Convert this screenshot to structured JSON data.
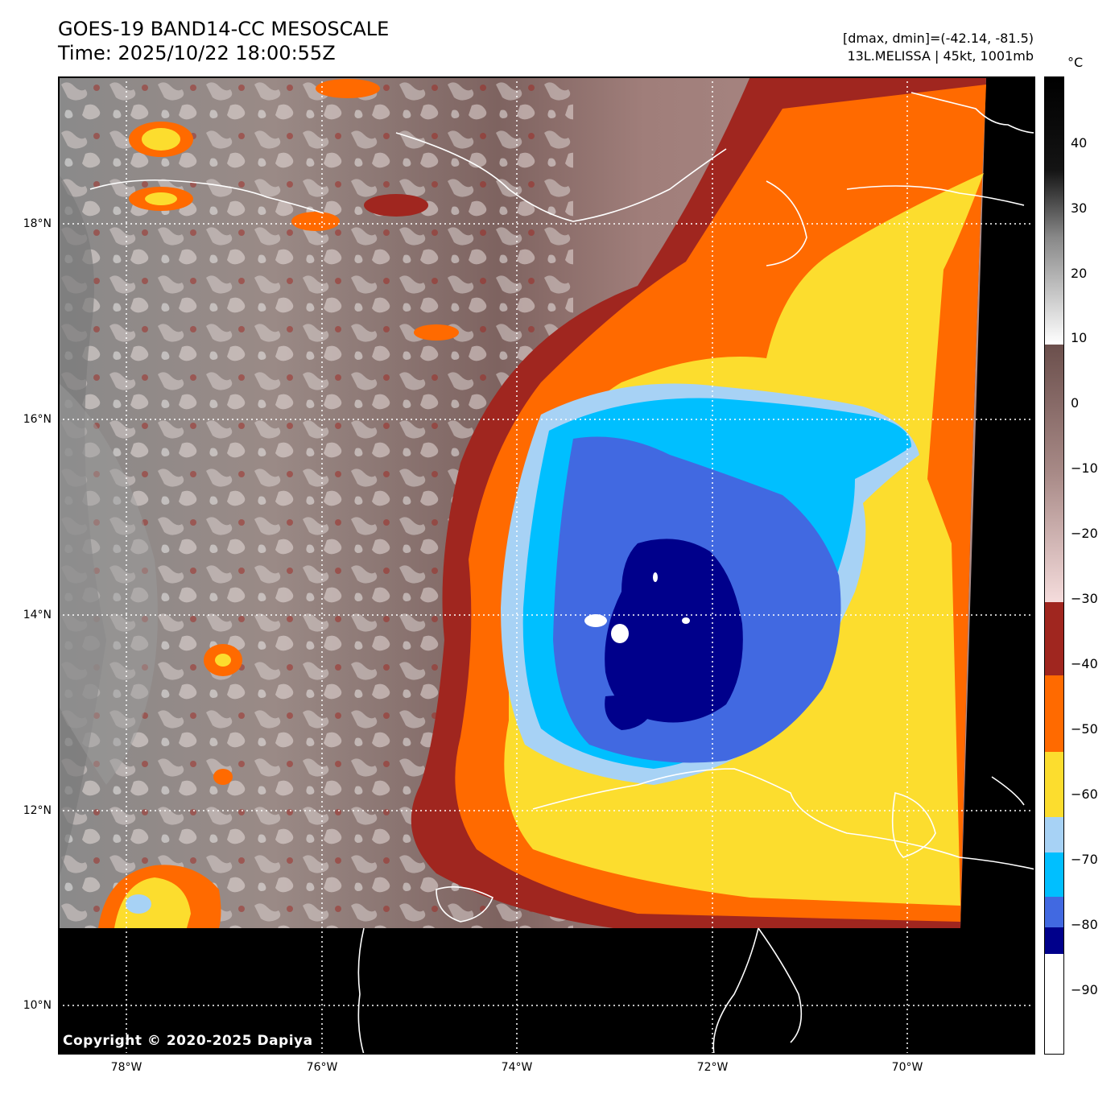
{
  "title": {
    "line1": "GOES-19 BAND14-CC MESOSCALE",
    "line2": "Time: 2025/10/22 18:00:55Z"
  },
  "info": {
    "line1": "[dmax, dmin]=(-42.14, -81.5)",
    "line2": "13L.MELISSA | 45kt, 1001mb"
  },
  "lat_labels": [
    "18°N",
    "16°N",
    "14°N",
    "12°N",
    "10°N"
  ],
  "lon_labels": [
    "78°W",
    "76°W",
    "74°W",
    "72°W",
    "70°W"
  ],
  "colorbar": {
    "unit": "°C",
    "ticks": [
      "40",
      "30",
      "20",
      "10",
      "0",
      "−10",
      "−20",
      "−30",
      "−40",
      "−50",
      "−60",
      "−70",
      "−80",
      "−90"
    ],
    "colors": {
      "warm_black": "#000000",
      "gray_top": "#1a1a1a",
      "gray_white": "#ffffff",
      "brown": "#6b4f4c",
      "pink": "#f5dcdc",
      "dark_red": "#a0261f",
      "orange": "#ff6a00",
      "yellow": "#fcdd2e",
      "light_blue": "#a7d2f5",
      "cyan": "#00bfff",
      "royal_blue": "#4169e1",
      "navy": "#00008b",
      "white": "#ffffff"
    }
  },
  "copyright": "Copyright © 2020-2025 Dapiya"
}
